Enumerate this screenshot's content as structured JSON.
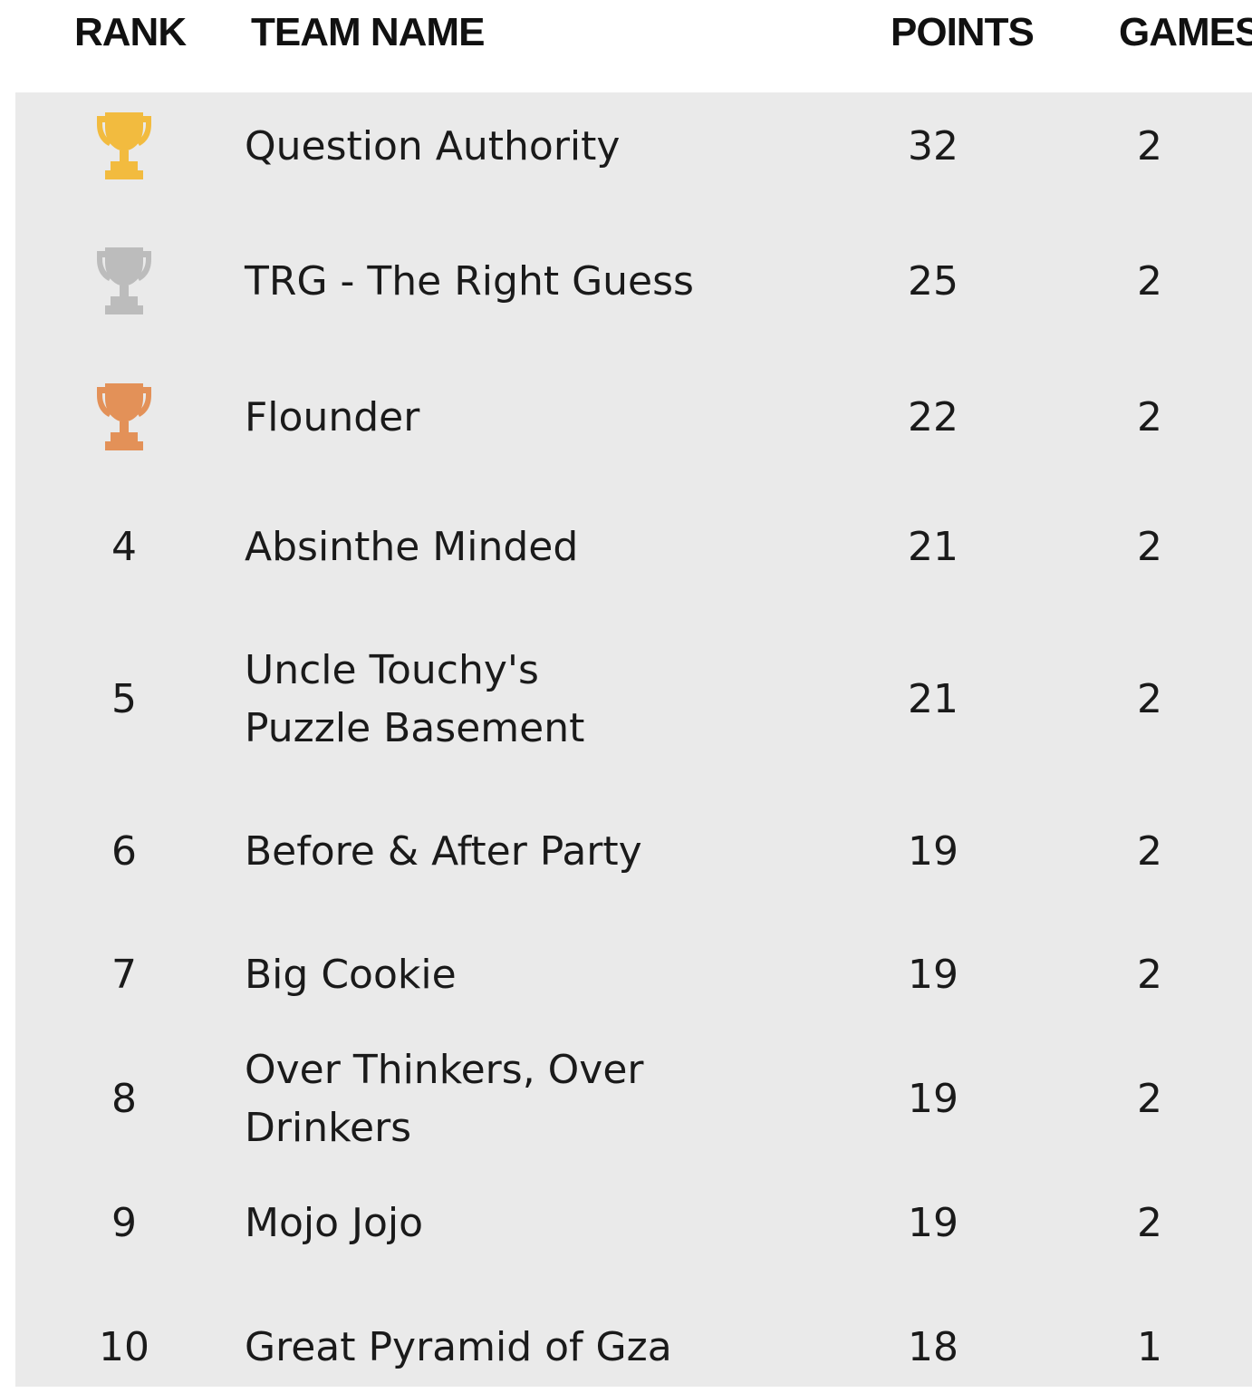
{
  "header": {
    "rank": "RANK",
    "team": "TEAM NAME",
    "points": "POINTS",
    "games": "GAMES"
  },
  "trophy_colors": {
    "gold": "#f2bb3f",
    "silver": "#bcbcbc",
    "bronze": "#e39158"
  },
  "rows": [
    {
      "rank": "1",
      "trophy": "gold",
      "team": "Question Authority",
      "points": "32",
      "games": "2"
    },
    {
      "rank": "2",
      "trophy": "silver",
      "team": "TRG - The Right Guess",
      "points": "25",
      "games": "2"
    },
    {
      "rank": "3",
      "trophy": "bronze",
      "team": "Flounder",
      "points": "22",
      "games": "2"
    },
    {
      "rank": "4",
      "team": "Absinthe Minded",
      "points": "21",
      "games": "2"
    },
    {
      "rank": "5",
      "team": "Uncle Touchy's Puzzle Basement",
      "points": "21",
      "games": "2"
    },
    {
      "rank": "6",
      "team": "Before & After Party",
      "points": "19",
      "games": "2"
    },
    {
      "rank": "7",
      "team": "Big Cookie",
      "points": "19",
      "games": "2"
    },
    {
      "rank": "8",
      "team": "Over Thinkers, Over Drinkers",
      "points": "19",
      "games": "2"
    },
    {
      "rank": "9",
      "team": "Mojo Jojo",
      "points": "19",
      "games": "2"
    },
    {
      "rank": "10",
      "team": "Great Pyramid of Gza",
      "points": "18",
      "games": "1"
    }
  ]
}
